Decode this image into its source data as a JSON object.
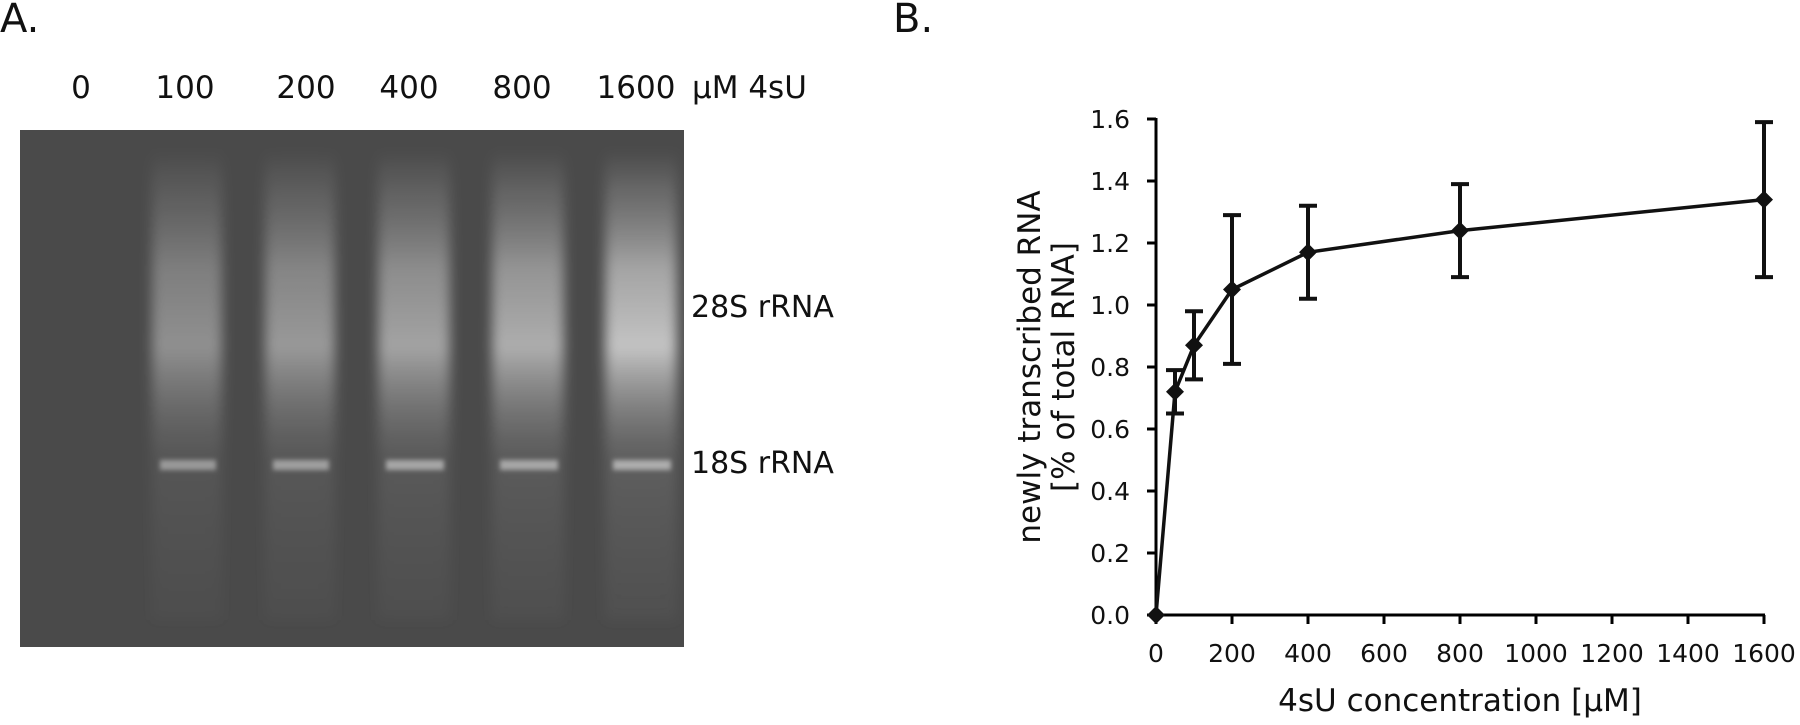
{
  "panel_a": {
    "label": "A.",
    "lanes": [
      "0",
      "100",
      "200",
      "400",
      "800",
      "1600"
    ],
    "lane_unit": "µM 4sU",
    "band_labels": [
      "28S rRNA",
      "18S rRNA"
    ]
  },
  "panel_b": {
    "label": "B."
  },
  "chart_data": {
    "type": "line",
    "xlabel": "4sU concentration [µM]",
    "ylabel_line1": "newly transcribed RNA",
    "ylabel_line2": "[% of total RNA]",
    "xlim": [
      0,
      1600
    ],
    "ylim": [
      0,
      1.6
    ],
    "x_ticks": [
      0,
      200,
      400,
      600,
      800,
      1000,
      1200,
      1400,
      1600
    ],
    "x_tick_labels": [
      "0",
      "200",
      "400",
      "600",
      "800",
      "1000",
      "1200",
      "1400",
      "1600"
    ],
    "y_ticks": [
      0,
      0.2,
      0.4,
      0.6,
      0.8,
      1.0,
      1.2,
      1.4,
      1.6
    ],
    "y_tick_labels": [
      "0.0",
      "0.2",
      "0.4",
      "0.6",
      "0.8",
      "1.0",
      "1.2",
      "1.4",
      "1.6"
    ],
    "grid": false,
    "series": [
      {
        "x": [
          0,
          50,
          100,
          200,
          400,
          800,
          1600
        ],
        "y": [
          0.0,
          0.72,
          0.87,
          1.05,
          1.17,
          1.24,
          1.34
        ],
        "error": [
          0.0,
          0.07,
          0.11,
          0.24,
          0.15,
          0.15,
          0.25
        ]
      }
    ]
  }
}
